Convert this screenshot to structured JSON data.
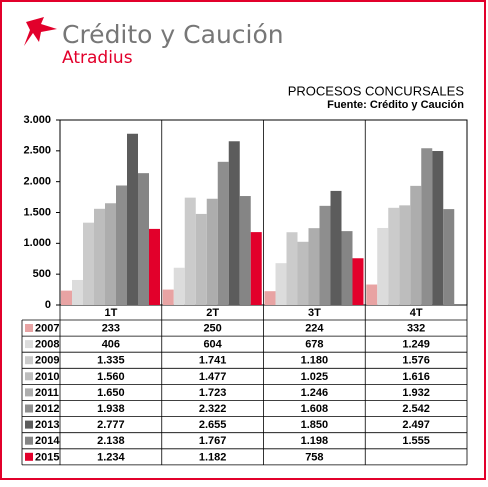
{
  "logo": {
    "name": "Crédito y Caución",
    "sub": "Atradius"
  },
  "chart_data": {
    "type": "bar",
    "title": "PROCESOS CONCURSALES",
    "subtitle": "Fuente: Crédito y Caución",
    "categories": [
      "1T",
      "2T",
      "3T",
      "4T"
    ],
    "ylim": [
      0,
      3000
    ],
    "yticks": [
      0,
      {
        "value": 500,
        "label": "500"
      },
      {
        "value": 1000,
        "label": "1.000"
      },
      {
        "value": 1500,
        "label": "1.500"
      },
      {
        "value": 2000,
        "label": "2.000"
      },
      {
        "value": 2500,
        "label": "2.500"
      },
      {
        "value": 3000,
        "label": "3.000"
      }
    ],
    "grid": false,
    "series": [
      {
        "name": "2007",
        "color": "#e8a3a3",
        "values": [
          233,
          250,
          224,
          332
        ],
        "value_labels": [
          "233",
          "250",
          "224",
          "332"
        ]
      },
      {
        "name": "2008",
        "color": "#dcdcdc",
        "values": [
          406,
          604,
          678,
          1249
        ],
        "value_labels": [
          "406",
          "604",
          "678",
          "1.249"
        ]
      },
      {
        "name": "2009",
        "color": "#cbcbcb",
        "values": [
          1335,
          1741,
          1180,
          1576
        ],
        "value_labels": [
          "1.335",
          "1.741",
          "1.180",
          "1.576"
        ]
      },
      {
        "name": "2010",
        "color": "#bdbdbd",
        "values": [
          1560,
          1477,
          1025,
          1616
        ],
        "value_labels": [
          "1.560",
          "1.477",
          "1.025",
          "1.616"
        ]
      },
      {
        "name": "2011",
        "color": "#adadad",
        "values": [
          1650,
          1723,
          1246,
          1932
        ],
        "value_labels": [
          "1.650",
          "1.723",
          "1.246",
          "1.932"
        ]
      },
      {
        "name": "2012",
        "color": "#8e8e8e",
        "values": [
          1938,
          2322,
          1608,
          2542
        ],
        "value_labels": [
          "1.938",
          "2.322",
          "1.608",
          "2.542"
        ]
      },
      {
        "name": "2013",
        "color": "#5c5c5c",
        "values": [
          2777,
          2655,
          1850,
          2497
        ],
        "value_labels": [
          "2.777",
          "2.655",
          "1.850",
          "2.497"
        ]
      },
      {
        "name": "2014",
        "color": "#858585",
        "values": [
          2138,
          1767,
          1198,
          1555
        ],
        "value_labels": [
          "2.138",
          "1.767",
          "1.198",
          "1.555"
        ]
      },
      {
        "name": "2015",
        "color": "#e2002b",
        "values": [
          1234,
          1182,
          758,
          null
        ],
        "value_labels": [
          "1.234",
          "1.182",
          "758",
          null
        ]
      }
    ]
  }
}
